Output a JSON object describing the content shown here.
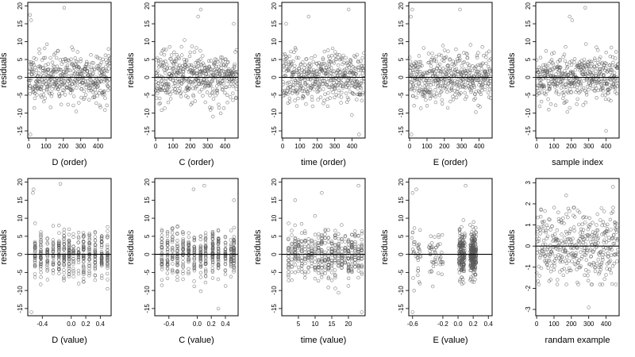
{
  "chart_data": [
    {
      "type": "scatter",
      "xlabel": "D (order)",
      "ylabel": "residuals",
      "xlim": [
        -5,
        475
      ],
      "ylim": [
        -17,
        21
      ],
      "xticks": [
        0,
        100,
        200,
        300,
        400
      ],
      "xtick_labels": [
        "0",
        "100",
        "200",
        "300",
        "400"
      ],
      "yticks": [
        -15,
        -10,
        -5,
        0,
        5,
        10,
        15,
        20
      ],
      "ytick_labels": [
        "-15",
        "-10",
        "-5",
        "0",
        "5",
        "10",
        "15",
        "20"
      ],
      "hline": 0,
      "points_pattern": "order",
      "seed": 11,
      "n": 460,
      "spread": 4.0,
      "outliers": [
        [
          8,
          17.5
        ],
        [
          14,
          16
        ],
        [
          205,
          19.5
        ],
        [
          10,
          -16
        ]
      ]
    },
    {
      "type": "scatter",
      "xlabel": "C (order)",
      "ylabel": "residuals",
      "xlim": [
        -5,
        475
      ],
      "ylim": [
        -17,
        21
      ],
      "xticks": [
        0,
        100,
        200,
        300,
        400
      ],
      "xtick_labels": [
        "0",
        "100",
        "200",
        "300",
        "400"
      ],
      "yticks": [
        -15,
        -10,
        -5,
        0,
        5,
        10,
        15,
        20
      ],
      "ytick_labels": [
        "-15",
        "-10",
        "-5",
        "0",
        "5",
        "10",
        "15",
        "20"
      ],
      "hline": 0,
      "points_pattern": "order",
      "seed": 23,
      "n": 460,
      "spread": 4.0,
      "outliers": [
        [
          260,
          19
        ],
        [
          245,
          17
        ],
        [
          330,
          -11
        ],
        [
          450,
          15
        ]
      ]
    },
    {
      "type": "scatter",
      "xlabel": "time (order)",
      "ylabel": "residuals",
      "xlim": [
        -5,
        475
      ],
      "ylim": [
        -17,
        21
      ],
      "xticks": [
        0,
        100,
        200,
        300,
        400
      ],
      "xtick_labels": [
        "0",
        "100",
        "200",
        "300",
        "400"
      ],
      "yticks": [
        -15,
        -10,
        -5,
        0,
        5,
        10,
        15,
        20
      ],
      "ytick_labels": [
        "-15",
        "-10",
        "-5",
        "0",
        "5",
        "10",
        "15",
        "20"
      ],
      "hline": 0,
      "points_pattern": "order",
      "seed": 37,
      "n": 460,
      "spread": 4.0,
      "outliers": [
        [
          20,
          15
        ],
        [
          150,
          17
        ],
        [
          380,
          19
        ],
        [
          440,
          -16
        ]
      ]
    },
    {
      "type": "scatter",
      "xlabel": "E (order)",
      "ylabel": "residuals",
      "xlim": [
        -5,
        475
      ],
      "ylim": [
        -17,
        21
      ],
      "xticks": [
        0,
        100,
        200,
        300,
        400
      ],
      "xtick_labels": [
        "0",
        "100",
        "200",
        "300",
        "400"
      ],
      "yticks": [
        -15,
        -10,
        -5,
        0,
        5,
        10,
        15,
        20
      ],
      "ytick_labels": [
        "-15",
        "-10",
        "-5",
        "0",
        "5",
        "10",
        "15",
        "20"
      ],
      "hline": 0,
      "points_pattern": "order",
      "seed": 41,
      "n": 460,
      "spread": 4.0,
      "outliers": [
        [
          8,
          17
        ],
        [
          15,
          19
        ],
        [
          290,
          19
        ],
        [
          10,
          -16
        ]
      ]
    },
    {
      "type": "scatter",
      "xlabel": "sample index",
      "ylabel": "residuals",
      "xlim": [
        -5,
        475
      ],
      "ylim": [
        -17,
        21
      ],
      "xticks": [
        0,
        100,
        200,
        300,
        400
      ],
      "xtick_labels": [
        "0",
        "100",
        "200",
        "300",
        "400"
      ],
      "yticks": [
        -15,
        -10,
        -5,
        0,
        5,
        10,
        15,
        20
      ],
      "ytick_labels": [
        "-15",
        "-10",
        "-5",
        "0",
        "5",
        "10",
        "15",
        "20"
      ],
      "hline": 0,
      "points_pattern": "order",
      "seed": 53,
      "n": 460,
      "spread": 4.0,
      "outliers": [
        [
          190,
          17
        ],
        [
          205,
          16
        ],
        [
          280,
          19.5
        ],
        [
          400,
          -15
        ]
      ]
    },
    {
      "type": "scatter",
      "xlabel": "D (value)",
      "ylabel": "residuals",
      "xlim": [
        -0.6,
        0.55
      ],
      "ylim": [
        -17,
        21
      ],
      "xticks": [
        -0.4,
        0,
        0.2,
        0.4
      ],
      "xtick_labels": [
        "-0.4",
        "0.0",
        "0.2",
        "0.4"
      ],
      "yticks": [
        -15,
        -10,
        -5,
        0,
        5,
        10,
        15,
        20
      ],
      "ytick_labels": [
        "-15",
        "-10",
        "-5",
        "0",
        "5",
        "10",
        "15",
        "20"
      ],
      "hline": 0,
      "points_pattern": "discrete",
      "levels": [
        -0.5,
        -0.42,
        -0.33,
        -0.25,
        -0.17,
        -0.1,
        -0.03,
        0.03,
        0.1,
        0.17,
        0.25,
        0.33,
        0.42,
        0.5
      ],
      "seed": 61,
      "n": 460,
      "spread": 3.8,
      "outliers": [
        [
          -0.52,
          18
        ],
        [
          -0.53,
          17
        ],
        [
          -0.15,
          19.5
        ],
        [
          -0.55,
          -16
        ]
      ]
    },
    {
      "type": "scatter",
      "xlabel": "C (value)",
      "ylabel": "residuals",
      "xlim": [
        -0.6,
        0.58
      ],
      "ylim": [
        -17,
        21
      ],
      "xticks": [
        -0.4,
        0,
        0.2,
        0.4
      ],
      "xtick_labels": [
        "-0.4",
        "0.0",
        "0.2",
        "0.4"
      ],
      "yticks": [
        -15,
        -10,
        -5,
        0,
        5,
        10,
        15,
        20
      ],
      "ytick_labels": [
        "-15",
        "-10",
        "-5",
        "0",
        "5",
        "10",
        "15",
        "20"
      ],
      "hline": 0,
      "points_pattern": "discrete",
      "levels": [
        -0.5,
        -0.42,
        -0.35,
        -0.28,
        -0.2,
        -0.12,
        -0.04,
        0.05,
        0.12,
        0.22,
        0.3,
        0.4,
        0.48,
        0.52
      ],
      "seed": 71,
      "n": 460,
      "spread": 3.8,
      "outliers": [
        [
          0.1,
          19
        ],
        [
          -0.05,
          18
        ],
        [
          0.52,
          15
        ],
        [
          0.3,
          -15
        ]
      ]
    },
    {
      "type": "scatter",
      "xlabel": "time (value)",
      "ylabel": "residuals",
      "xlim": [
        0,
        25
      ],
      "ylim": [
        -17,
        21
      ],
      "xticks": [
        5,
        10,
        15,
        20
      ],
      "xtick_labels": [
        "5",
        "10",
        "15",
        "20"
      ],
      "yticks": [
        -15,
        -10,
        -5,
        0,
        5,
        10,
        15,
        20
      ],
      "ytick_labels": [
        "-15",
        "-10",
        "-5",
        "0",
        "5",
        "10",
        "15",
        "20"
      ],
      "hline": 0,
      "points_pattern": "discrete",
      "levels": [
        2,
        3,
        4,
        5,
        6,
        7,
        8,
        9,
        10,
        11,
        12,
        13,
        14,
        15,
        16,
        17,
        18,
        19,
        20,
        21,
        22,
        23,
        24
      ],
      "seed": 83,
      "n": 460,
      "spread": 4.0,
      "outliers": [
        [
          12,
          17
        ],
        [
          4,
          15
        ],
        [
          23,
          19
        ],
        [
          24,
          -16
        ]
      ]
    },
    {
      "type": "scatter",
      "xlabel": "E (value)",
      "ylabel": "residuals",
      "xlim": [
        -0.65,
        0.45
      ],
      "ylim": [
        -17,
        21
      ],
      "xticks": [
        -0.6,
        -0.2,
        0,
        0.2,
        0.4
      ],
      "xtick_labels": [
        "-0.6",
        "-0.2",
        "0.0",
        "0.2",
        "0.4"
      ],
      "yticks": [
        -15,
        -10,
        -5,
        0,
        5,
        10,
        15,
        20
      ],
      "ytick_labels": [
        "-15",
        "-10",
        "-5",
        "0",
        "5",
        "10",
        "15",
        "20"
      ],
      "hline": 0,
      "points_pattern": "clustered",
      "clusters": [
        [
          -0.55,
          0.06,
          0.08
        ],
        [
          -0.3,
          0.1,
          0.12
        ],
        [
          0.05,
          0.04,
          0.35
        ],
        [
          0.2,
          0.04,
          0.45
        ]
      ],
      "seed": 97,
      "n": 460,
      "spread": 4.0,
      "outliers": [
        [
          -0.6,
          17
        ],
        [
          -0.55,
          18
        ],
        [
          0.1,
          19
        ],
        [
          -0.6,
          -16
        ]
      ]
    },
    {
      "type": "scatter",
      "xlabel": "randam example",
      "ylabel": "residuals",
      "xlim": [
        -5,
        475
      ],
      "ylim": [
        -3.3,
        3.2
      ],
      "xticks": [
        0,
        100,
        200,
        300,
        400
      ],
      "xtick_labels": [
        "0",
        "100",
        "200",
        "300",
        "400"
      ],
      "yticks": [
        -3,
        -2,
        -1,
        0,
        1,
        2,
        3
      ],
      "ytick_labels": [
        "-3",
        "-2",
        "-1",
        "0",
        "1",
        "2",
        "3"
      ],
      "hline": 0,
      "points_pattern": "order",
      "seed": 101,
      "n": 400,
      "spread": 1.0,
      "outliers": [
        [
          440,
          2.8
        ],
        [
          300,
          -2.9
        ],
        [
          170,
          2.4
        ]
      ]
    }
  ]
}
